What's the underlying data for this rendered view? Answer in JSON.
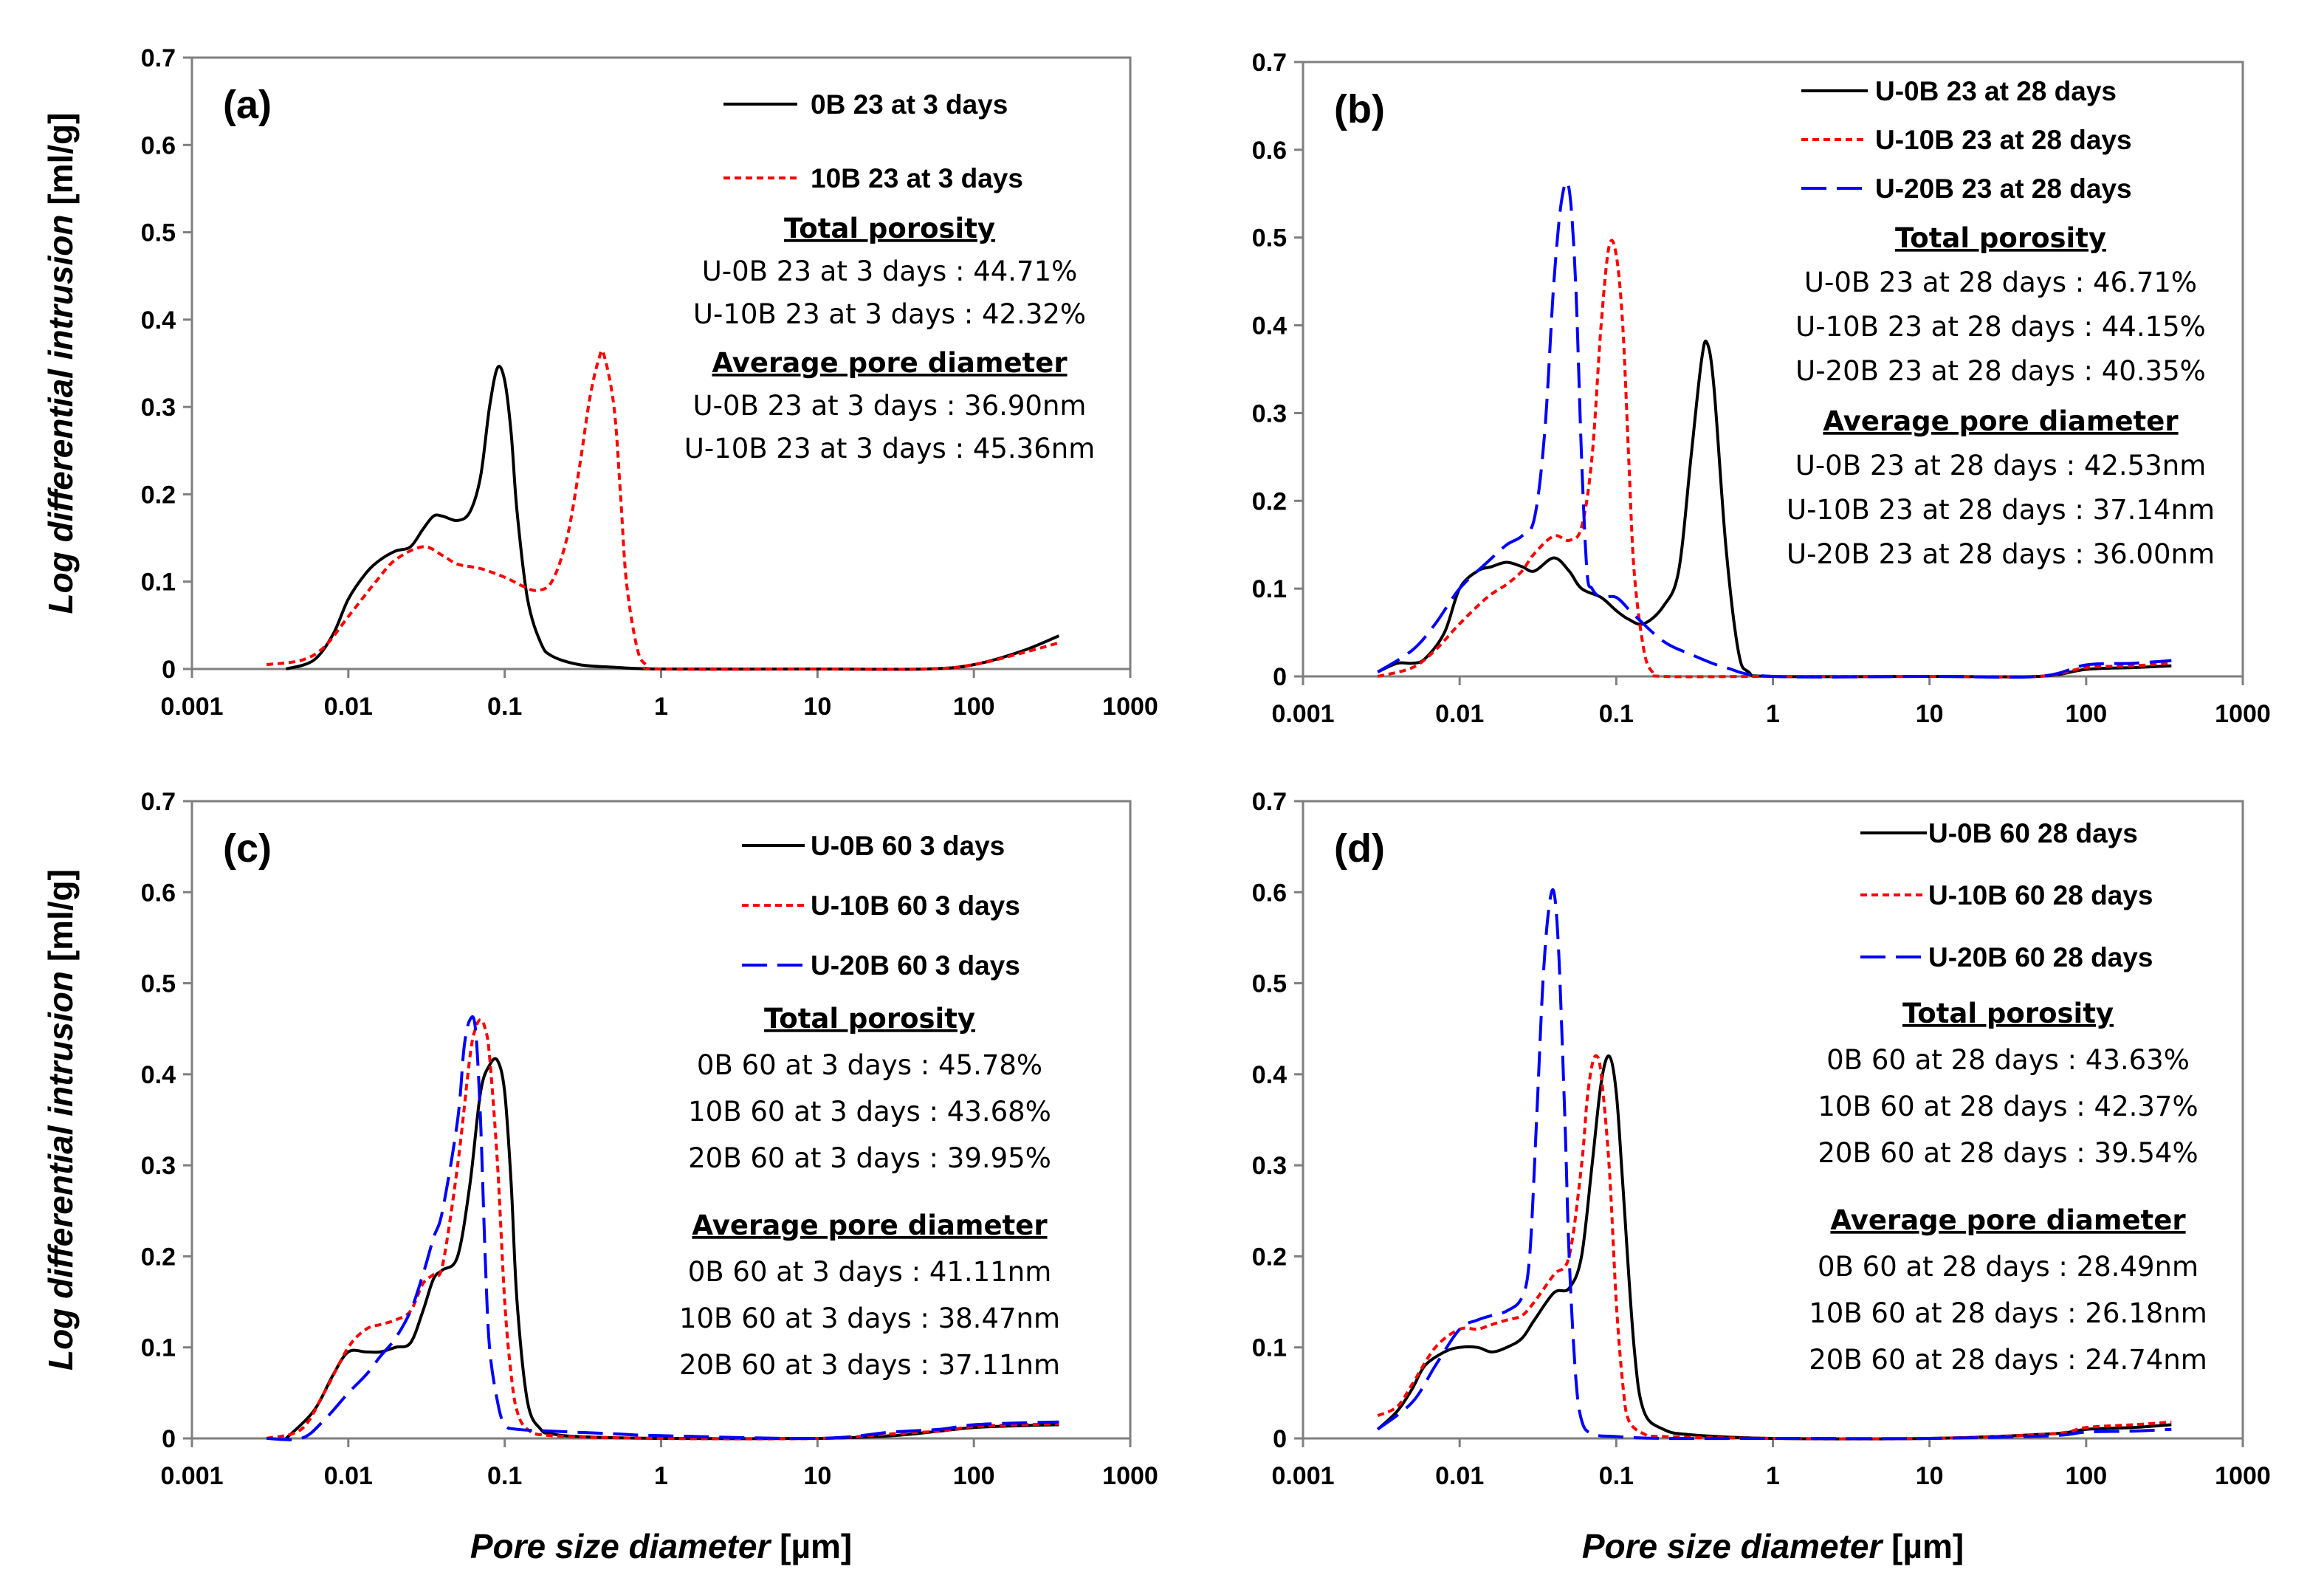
{
  "chart_data": [
    {
      "type": "line",
      "panel_label": "(a)",
      "xscale": "log",
      "xlim": [
        0.001,
        1000
      ],
      "ylim": [
        0,
        0.7
      ],
      "xticks": [
        "0.001",
        "0.01",
        "0.1",
        "1",
        "10",
        "100",
        "1000"
      ],
      "yticks": [
        "0",
        "0.1",
        "0.2",
        "0.3",
        "0.4",
        "0.5",
        "0.6",
        "0.7"
      ],
      "ylabel": "Log differential  intrusion",
      "ylabel_unit": " [ml/g]",
      "xlabel": "",
      "xlabel_unit": "",
      "legend_position": "top-right",
      "series": [
        {
          "name": "0B 23 at 3 days",
          "color": "#000000",
          "dash": "solid",
          "x": [
            0.004,
            0.006,
            0.008,
            0.01,
            0.013,
            0.016,
            0.02,
            0.025,
            0.03,
            0.035,
            0.04,
            0.05,
            0.06,
            0.07,
            0.08,
            0.09,
            0.1,
            0.11,
            0.12,
            0.14,
            0.17,
            0.2,
            0.3,
            0.5,
            1,
            10,
            50,
            100,
            200,
            350
          ],
          "y": [
            0.0,
            0.01,
            0.04,
            0.08,
            0.11,
            0.125,
            0.135,
            0.14,
            0.16,
            0.175,
            0.175,
            0.17,
            0.18,
            0.22,
            0.3,
            0.345,
            0.33,
            0.27,
            0.18,
            0.08,
            0.03,
            0.015,
            0.005,
            0.002,
            0.0,
            0.0,
            0.0,
            0.005,
            0.02,
            0.038
          ]
        },
        {
          "name": "10B 23 at 3 days",
          "color": "#ff0000",
          "dash": "short",
          "x": [
            0.003,
            0.005,
            0.007,
            0.01,
            0.015,
            0.02,
            0.03,
            0.04,
            0.05,
            0.07,
            0.1,
            0.13,
            0.16,
            0.2,
            0.25,
            0.3,
            0.35,
            0.4,
            0.43,
            0.5,
            0.55,
            0.6,
            0.7,
            0.8,
            1,
            10,
            50,
            100,
            200,
            350
          ],
          "y": [
            0.005,
            0.01,
            0.025,
            0.06,
            0.1,
            0.125,
            0.14,
            0.13,
            0.12,
            0.115,
            0.105,
            0.095,
            0.09,
            0.1,
            0.15,
            0.23,
            0.31,
            0.355,
            0.36,
            0.3,
            0.2,
            0.1,
            0.025,
            0.005,
            0.0,
            0.0,
            0.0,
            0.005,
            0.018,
            0.03
          ]
        }
      ],
      "annotations": [
        {
          "text": "Total porosity",
          "heading": true
        },
        {
          "text": "U-0B 23 at 3 days : 44.71%"
        },
        {
          "text": "U-10B 23 at 3 days : 42.32%"
        },
        {
          "text": "Average pore diameter",
          "heading": true
        },
        {
          "text": "U-0B 23 at 3 days : 36.90nm"
        },
        {
          "text": "U-10B 23 at 3 days : 45.36nm"
        }
      ]
    },
    {
      "type": "line",
      "panel_label": "(b)",
      "xscale": "log",
      "xlim": [
        0.001,
        1000
      ],
      "ylim": [
        0,
        0.7
      ],
      "xticks": [
        "0.001",
        "0.01",
        "0.1",
        "1",
        "10",
        "100",
        "1000"
      ],
      "yticks": [
        "0",
        "0.1",
        "0.2",
        "0.3",
        "0.4",
        "0.5",
        "0.6",
        "0.7"
      ],
      "ylabel": "",
      "ylabel_unit": "",
      "xlabel": "",
      "xlabel_unit": "",
      "legend_position": "top-right",
      "series": [
        {
          "name": "U-0B 23 at 28 days",
          "color": "#000000",
          "dash": "solid",
          "x": [
            0.003,
            0.004,
            0.005,
            0.006,
            0.008,
            0.01,
            0.013,
            0.016,
            0.02,
            0.025,
            0.03,
            0.04,
            0.05,
            0.06,
            0.08,
            0.1,
            0.12,
            0.15,
            0.2,
            0.25,
            0.3,
            0.35,
            0.38,
            0.42,
            0.5,
            0.6,
            0.7,
            1,
            10,
            50,
            100,
            200,
            350
          ],
          "y": [
            0.005,
            0.015,
            0.015,
            0.02,
            0.05,
            0.1,
            0.12,
            0.125,
            0.13,
            0.125,
            0.12,
            0.135,
            0.12,
            0.1,
            0.09,
            0.075,
            0.065,
            0.06,
            0.08,
            0.12,
            0.25,
            0.36,
            0.38,
            0.33,
            0.15,
            0.03,
            0.005,
            0.0,
            0.0,
            0.0,
            0.008,
            0.01,
            0.012
          ]
        },
        {
          "name": "U-10B 23 at 28 days",
          "color": "#ff0000",
          "dash": "short",
          "x": [
            0.003,
            0.005,
            0.007,
            0.01,
            0.015,
            0.02,
            0.025,
            0.03,
            0.04,
            0.05,
            0.06,
            0.07,
            0.08,
            0.09,
            0.1,
            0.11,
            0.12,
            0.13,
            0.15,
            0.17,
            0.2,
            1,
            10,
            50,
            100,
            200,
            350
          ],
          "y": [
            0.0,
            0.01,
            0.03,
            0.06,
            0.09,
            0.105,
            0.12,
            0.14,
            0.16,
            0.155,
            0.17,
            0.25,
            0.4,
            0.49,
            0.48,
            0.4,
            0.25,
            0.12,
            0.03,
            0.005,
            0.0,
            0.0,
            0.0,
            0.0,
            0.01,
            0.012,
            0.015
          ]
        },
        {
          "name": "U-20B 23 at 28 days",
          "color": "#0000ff",
          "dash": "long",
          "x": [
            0.003,
            0.005,
            0.007,
            0.01,
            0.015,
            0.02,
            0.025,
            0.03,
            0.035,
            0.04,
            0.045,
            0.05,
            0.055,
            0.06,
            0.065,
            0.07,
            0.08,
            0.1,
            0.13,
            0.2,
            0.3,
            0.5,
            1,
            10,
            50,
            100,
            200,
            350
          ],
          "y": [
            0.005,
            0.03,
            0.06,
            0.1,
            0.13,
            0.15,
            0.16,
            0.18,
            0.28,
            0.45,
            0.545,
            0.555,
            0.45,
            0.25,
            0.12,
            0.1,
            0.09,
            0.09,
            0.07,
            0.04,
            0.025,
            0.01,
            0.0,
            0.0,
            0.0,
            0.013,
            0.015,
            0.018
          ]
        }
      ],
      "annotations": [
        {
          "text": "Total porosity",
          "heading": true
        },
        {
          "text": "U-0B 23 at 28 days : 46.71%"
        },
        {
          "text": "U-10B 23 at 28 days : 44.15%"
        },
        {
          "text": "U-20B 23 at 28 days : 40.35%"
        },
        {
          "text": "Average pore diameter",
          "heading": true
        },
        {
          "text": "U-0B 23 at 28 days : 42.53nm"
        },
        {
          "text": "U-10B 23 at 28 days : 37.14nm"
        },
        {
          "text": "U-20B 23 at 28 days : 36.00nm"
        }
      ]
    },
    {
      "type": "line",
      "panel_label": "(c)",
      "xscale": "log",
      "xlim": [
        0.001,
        1000
      ],
      "ylim": [
        0,
        0.7
      ],
      "xticks": [
        "0.001",
        "0.01",
        "0.1",
        "1",
        "10",
        "100",
        "1000"
      ],
      "yticks": [
        "0",
        "0.1",
        "0.2",
        "0.3",
        "0.4",
        "0.5",
        "0.6",
        "0.7"
      ],
      "ylabel": "Log differential  intrusion",
      "ylabel_unit": " [ml/g]",
      "xlabel": "Pore size diameter",
      "xlabel_unit": " [µm]",
      "legend_position": "top-right",
      "series": [
        {
          "name": "U-0B 60 3 days",
          "color": "#000000",
          "dash": "solid",
          "x": [
            0.004,
            0.006,
            0.008,
            0.01,
            0.013,
            0.016,
            0.02,
            0.025,
            0.03,
            0.035,
            0.04,
            0.05,
            0.06,
            0.07,
            0.08,
            0.09,
            0.1,
            0.11,
            0.12,
            0.14,
            0.17,
            0.2,
            0.3,
            1,
            10,
            30,
            60,
            100,
            200,
            350
          ],
          "y": [
            0.0,
            0.03,
            0.07,
            0.095,
            0.095,
            0.095,
            0.1,
            0.105,
            0.14,
            0.175,
            0.185,
            0.2,
            0.28,
            0.38,
            0.41,
            0.415,
            0.38,
            0.28,
            0.15,
            0.04,
            0.01,
            0.005,
            0.002,
            0.0,
            0.0,
            0.003,
            0.008,
            0.012,
            0.014,
            0.015
          ]
        },
        {
          "name": "U-10B 60 3 days",
          "color": "#ff0000",
          "dash": "short",
          "x": [
            0.003,
            0.005,
            0.007,
            0.01,
            0.013,
            0.016,
            0.02,
            0.025,
            0.03,
            0.035,
            0.04,
            0.05,
            0.06,
            0.065,
            0.07,
            0.075,
            0.08,
            0.09,
            0.1,
            0.11,
            0.12,
            0.14,
            0.2,
            1,
            10,
            30,
            60,
            100,
            200,
            350
          ],
          "y": [
            0.0,
            0.01,
            0.05,
            0.1,
            0.12,
            0.125,
            0.13,
            0.14,
            0.17,
            0.18,
            0.19,
            0.3,
            0.42,
            0.45,
            0.46,
            0.45,
            0.42,
            0.3,
            0.15,
            0.07,
            0.03,
            0.01,
            0.003,
            0.0,
            0.0,
            0.005,
            0.008,
            0.013,
            0.015,
            0.016
          ]
        },
        {
          "name": "U-20B 60 3 days",
          "color": "#0000ff",
          "dash": "long",
          "x": [
            0.003,
            0.005,
            0.007,
            0.01,
            0.013,
            0.016,
            0.02,
            0.025,
            0.03,
            0.035,
            0.04,
            0.05,
            0.055,
            0.06,
            0.065,
            0.07,
            0.075,
            0.08,
            0.09,
            0.1,
            0.12,
            0.2,
            0.5,
            1,
            10,
            30,
            60,
            100,
            200,
            350
          ],
          "y": [
            0.0,
            0.0,
            0.02,
            0.05,
            0.07,
            0.09,
            0.11,
            0.14,
            0.18,
            0.22,
            0.25,
            0.35,
            0.43,
            0.46,
            0.45,
            0.35,
            0.2,
            0.1,
            0.04,
            0.015,
            0.01,
            0.008,
            0.005,
            0.003,
            0.0,
            0.007,
            0.01,
            0.015,
            0.017,
            0.018
          ]
        }
      ],
      "annotations": [
        {
          "text": "Total porosity",
          "heading": true
        },
        {
          "text": "0B 60 at 3 days : 45.78%"
        },
        {
          "text": "10B 60 at 3 days : 43.68%"
        },
        {
          "text": "20B 60 at 3 days : 39.95%"
        },
        {
          "text": "Average pore diameter",
          "heading": true
        },
        {
          "text": "0B 60 at 3 days : 41.11nm"
        },
        {
          "text": "10B 60 at 3 days : 38.47nm"
        },
        {
          "text": "20B 60 at 3 days : 37.11nm"
        }
      ]
    },
    {
      "type": "line",
      "panel_label": "(d)",
      "xscale": "log",
      "xlim": [
        0.001,
        1000
      ],
      "ylim": [
        0,
        0.7
      ],
      "xticks": [
        "0.001",
        "0.01",
        "0.1",
        "1",
        "10",
        "100",
        "1000"
      ],
      "yticks": [
        "0",
        "0.1",
        "0.2",
        "0.3",
        "0.4",
        "0.5",
        "0.6",
        "0.7"
      ],
      "ylabel": "",
      "ylabel_unit": "",
      "xlabel": "Pore size diameter",
      "xlabel_unit": " [µm]",
      "legend_position": "top-right",
      "series": [
        {
          "name": "U-0B 60 28 days",
          "color": "#000000",
          "dash": "solid",
          "x": [
            0.003,
            0.004,
            0.005,
            0.006,
            0.008,
            0.01,
            0.013,
            0.016,
            0.02,
            0.025,
            0.03,
            0.04,
            0.05,
            0.06,
            0.07,
            0.08,
            0.09,
            0.1,
            0.11,
            0.13,
            0.15,
            0.2,
            0.3,
            1,
            10,
            60,
            100,
            200,
            350
          ],
          "y": [
            0.01,
            0.03,
            0.055,
            0.08,
            0.095,
            0.1,
            0.1,
            0.095,
            0.1,
            0.11,
            0.13,
            0.16,
            0.165,
            0.2,
            0.3,
            0.39,
            0.42,
            0.38,
            0.28,
            0.1,
            0.03,
            0.01,
            0.004,
            0.0,
            0.0,
            0.005,
            0.01,
            0.012,
            0.015
          ]
        },
        {
          "name": "U-10B 60 28 days",
          "color": "#ff0000",
          "dash": "short",
          "x": [
            0.003,
            0.004,
            0.005,
            0.007,
            0.01,
            0.013,
            0.016,
            0.02,
            0.025,
            0.03,
            0.04,
            0.05,
            0.06,
            0.065,
            0.07,
            0.075,
            0.08,
            0.09,
            0.1,
            0.11,
            0.12,
            0.15,
            0.2,
            1,
            10,
            60,
            100,
            200,
            350
          ],
          "y": [
            0.025,
            0.035,
            0.06,
            0.1,
            0.12,
            0.12,
            0.125,
            0.13,
            0.135,
            0.15,
            0.18,
            0.2,
            0.3,
            0.37,
            0.41,
            0.42,
            0.4,
            0.3,
            0.15,
            0.06,
            0.02,
            0.005,
            0.002,
            0.0,
            0.0,
            0.005,
            0.012,
            0.015,
            0.018
          ]
        },
        {
          "name": "U-20B 60 28 days",
          "color": "#0000ff",
          "dash": "long",
          "x": [
            0.003,
            0.005,
            0.007,
            0.01,
            0.013,
            0.016,
            0.02,
            0.025,
            0.028,
            0.031,
            0.034,
            0.037,
            0.04,
            0.043,
            0.047,
            0.05,
            0.055,
            0.06,
            0.07,
            0.1,
            0.2,
            1,
            10,
            60,
            100,
            200,
            350
          ],
          "y": [
            0.01,
            0.04,
            0.08,
            0.12,
            0.13,
            0.135,
            0.14,
            0.155,
            0.2,
            0.35,
            0.5,
            0.58,
            0.6,
            0.53,
            0.35,
            0.2,
            0.07,
            0.02,
            0.005,
            0.002,
            0.0,
            0.0,
            0.0,
            0.003,
            0.007,
            0.008,
            0.01
          ]
        }
      ],
      "annotations": [
        {
          "text": "Total porosity",
          "heading": true
        },
        {
          "text": "0B 60 at 28 days : 43.63%"
        },
        {
          "text": "10B 60 at 28 days : 42.37%"
        },
        {
          "text": "20B 60 at 28 days : 39.54%"
        },
        {
          "text": "Average pore diameter",
          "heading": true
        },
        {
          "text": "0B 60 at 28 days : 28.49nm"
        },
        {
          "text": "10B 60 at 28 days : 26.18nm"
        },
        {
          "text": "20B 60 at 28 days : 24.74nm"
        }
      ]
    }
  ]
}
